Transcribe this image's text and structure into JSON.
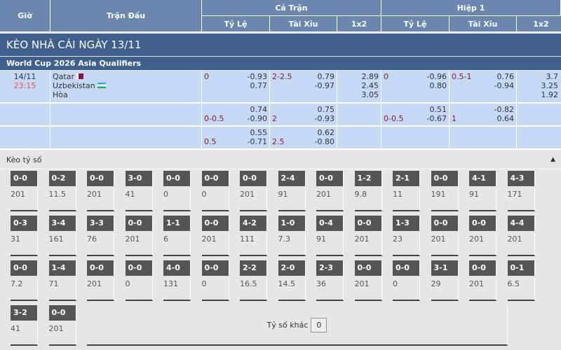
{
  "header": {
    "gio": "Giờ",
    "tran_dau": "Trận Đấu",
    "ca_tran": "Cả Trận",
    "hiep1": "Hiệp 1",
    "ty_le": "Tỷ Lệ",
    "tai_xiu": "Tài Xỉu",
    "x12": "1x2"
  },
  "title": "KÈO NHÀ CÁI NGÀY 13/11",
  "league": "World Cup 2026 Asia Qualifiers",
  "match": {
    "date": "14/11",
    "time": "23:15",
    "home": "Qatar",
    "away": "Uzbekistan",
    "draw": "Hòa",
    "time_color": "#f0504f",
    "rows": [
      {
        "ft_hcap": "0",
        "ft_hcap_odds": [
          "-0.93",
          "0.77"
        ],
        "ft_ou": "2-2.5",
        "ft_ou_odds": [
          "0.79",
          "-0.97"
        ],
        "ft_1x2": [
          "2.89",
          "2.45",
          "3.05"
        ],
        "h1_hcap": "0",
        "h1_hcap_odds": [
          "-0.96",
          "0.80"
        ],
        "h1_ou": "0.5-1",
        "h1_ou_odds": [
          "0.76",
          "-0.94"
        ],
        "h1_1x2": [
          "3.7",
          "3.25",
          "1.92"
        ]
      },
      {
        "ft_hcap": "0-0.5",
        "ft_hcap_odds": [
          "0.74",
          "-0.90"
        ],
        "ft_ou": "2",
        "ft_ou_odds": [
          "0.75",
          "-0.93"
        ],
        "h1_hcap": "0-0.5",
        "h1_hcap_odds": [
          "0.51",
          "-0.67"
        ],
        "h1_ou": "1",
        "h1_ou_odds": [
          "-0.82",
          "0.64"
        ]
      },
      {
        "ft_hcap": "0.5",
        "ft_hcap_odds": [
          "0.55",
          "-0.71"
        ],
        "ft_ou": "2.5",
        "ft_ou_odds": [
          "0.62",
          "-0.80"
        ]
      }
    ]
  },
  "scores_section": {
    "label": "Kèo tỷ số",
    "collapse_icon": "caret-up-icon",
    "items": [
      [
        "0-0",
        "201"
      ],
      [
        "0-2",
        "11.5"
      ],
      [
        "0-0",
        "201"
      ],
      [
        "3-0",
        "41"
      ],
      [
        "0-0",
        "0"
      ],
      [
        "0-0",
        "0"
      ],
      [
        "0-0",
        "201"
      ],
      [
        "2-4",
        "91"
      ],
      [
        "0-0",
        "201"
      ],
      [
        "1-2",
        "9.8"
      ],
      [
        "2-1",
        "11"
      ],
      [
        "0-0",
        "191"
      ],
      [
        "4-1",
        "91"
      ],
      [
        "4-3",
        "171"
      ],
      [
        "0-3",
        "31"
      ],
      [
        "3-4",
        "161"
      ],
      [
        "3-3",
        "76"
      ],
      [
        "0-0",
        "201"
      ],
      [
        "1-1",
        "6"
      ],
      [
        "0-0",
        "201"
      ],
      [
        "4-2",
        "111"
      ],
      [
        "1-0",
        "7.3"
      ],
      [
        "0-4",
        "91"
      ],
      [
        "0-0",
        "201"
      ],
      [
        "1-3",
        "23"
      ],
      [
        "0-0",
        "201"
      ],
      [
        "0-0",
        "201"
      ],
      [
        "4-4",
        "201"
      ],
      [
        "0-0",
        "7.2"
      ],
      [
        "1-4",
        "71"
      ],
      [
        "0-0",
        "201"
      ],
      [
        "0-0",
        "0"
      ],
      [
        "4-0",
        "131"
      ],
      [
        "0-0",
        "0"
      ],
      [
        "2-2",
        "16.5"
      ],
      [
        "2-0",
        "14.5"
      ],
      [
        "2-3",
        "36"
      ],
      [
        "0-0",
        "201"
      ],
      [
        "0-0",
        "0"
      ],
      [
        "3-1",
        "29"
      ],
      [
        "0-0",
        "201"
      ],
      [
        "0-1",
        "6.5"
      ],
      [
        "3-2",
        "41"
      ],
      [
        "0-0",
        "201"
      ]
    ],
    "other_label": "Tỷ số khác",
    "other_value": "0"
  }
}
